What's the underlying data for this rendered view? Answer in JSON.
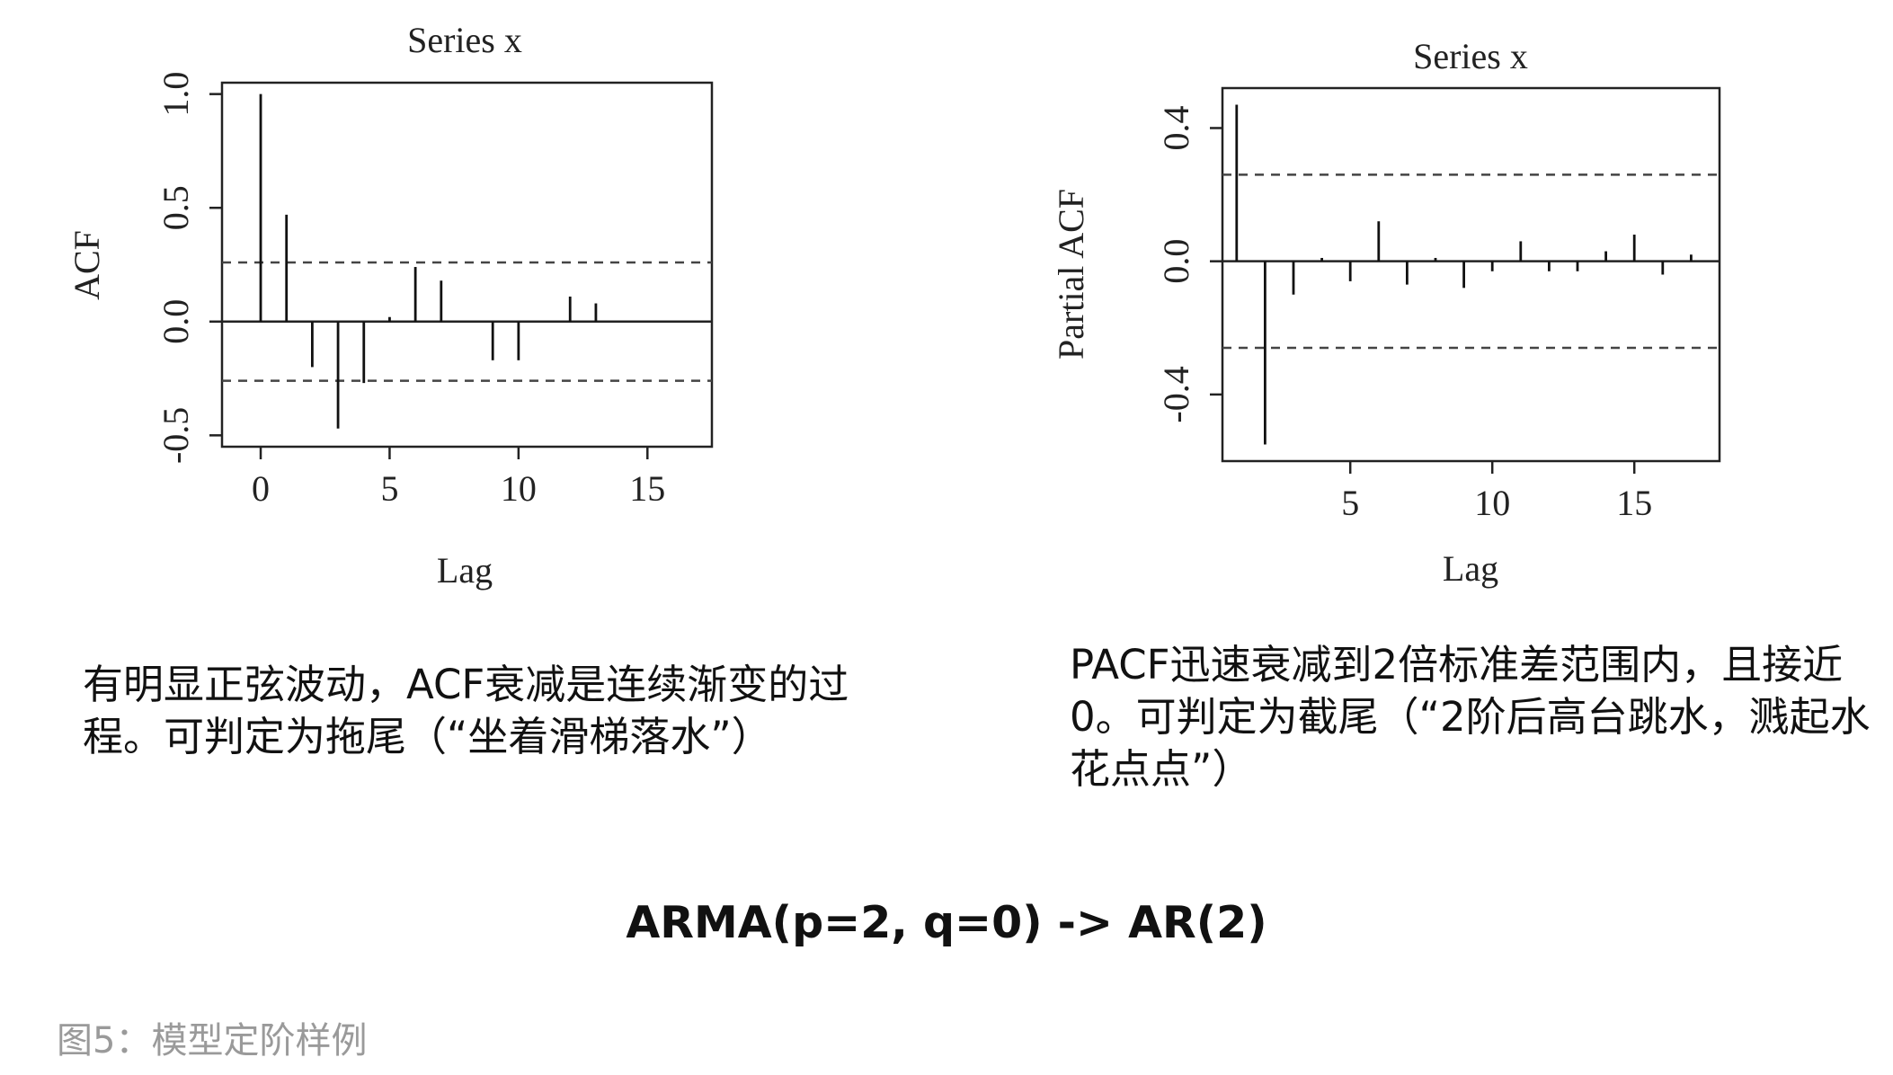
{
  "chart_data": [
    {
      "type": "bar",
      "title": "Series x",
      "xlabel": "Lag",
      "ylabel": "ACF",
      "xlim": [
        -1.5,
        17.5
      ],
      "ylim": [
        -0.55,
        1.05
      ],
      "xticks": [
        "0",
        "5",
        "10",
        "15"
      ],
      "yticks": [
        "-0.5",
        "0.0",
        "0.5",
        "1.0"
      ],
      "confidence_bounds": [
        0.26,
        -0.26
      ],
      "x": [
        0,
        1,
        2,
        3,
        4,
        5,
        6,
        7,
        8,
        9,
        10,
        11,
        12,
        13,
        14,
        15,
        16,
        17
      ],
      "values": [
        1.0,
        0.47,
        -0.2,
        -0.47,
        -0.27,
        0.02,
        0.24,
        0.18,
        0.0,
        -0.17,
        -0.17,
        0.0,
        0.11,
        0.08,
        0.0,
        0.0,
        0.0,
        0.0
      ]
    },
    {
      "type": "bar",
      "title": "Series x",
      "xlabel": "Lag",
      "ylabel": "Partial ACF",
      "xlim": [
        0.5,
        18
      ],
      "ylim": [
        -0.6,
        0.52
      ],
      "xticks": [
        "5",
        "10",
        "15"
      ],
      "yticks": [
        "-0.4",
        "0.0",
        "0.4"
      ],
      "confidence_bounds": [
        0.26,
        -0.26
      ],
      "x": [
        1,
        2,
        3,
        4,
        5,
        6,
        7,
        8,
        9,
        10,
        11,
        12,
        13,
        14,
        15,
        16,
        17
      ],
      "values": [
        0.47,
        -0.55,
        -0.1,
        0.01,
        -0.06,
        0.12,
        -0.07,
        0.01,
        -0.08,
        -0.03,
        0.06,
        -0.03,
        -0.03,
        0.03,
        0.08,
        -0.04,
        0.02
      ]
    }
  ],
  "descriptions": {
    "acf": "有明显正弦波动，ACF衰减是连续渐变的过程。可判定为拖尾（“坐着滑梯落水”）",
    "pacf": "PACF迅速衰减到2倍标准差范围内，且接近0。可判定为截尾（“2阶后高台跳水，溅起水花点点”）"
  },
  "conclusion": "ARMA(p=2, q=0) -> AR(2)",
  "caption": "图5：模型定阶样例"
}
